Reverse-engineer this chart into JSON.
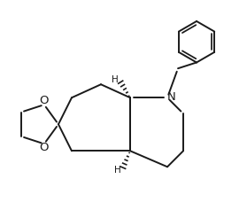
{
  "bg_color": "#ffffff",
  "line_color": "#1a1a1a",
  "line_width": 1.4,
  "fig_width": 2.79,
  "fig_height": 2.37,
  "dpi": 100,
  "xlim": [
    -0.75,
    0.85
  ],
  "ylim": [
    -0.72,
    0.85
  ]
}
